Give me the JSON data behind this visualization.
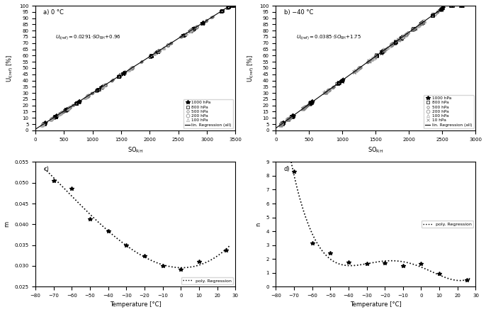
{
  "panel_a": {
    "slope": 0.0291,
    "intercept": 0.96,
    "xlim": [
      0,
      3500
    ],
    "ylim": [
      0,
      100
    ],
    "xticks": [
      0,
      500,
      1000,
      1500,
      2000,
      2500,
      3000,
      3500
    ],
    "rh_setpoints": [
      5,
      10,
      15,
      20,
      30,
      40,
      55,
      70,
      75,
      88,
      91
    ],
    "pressures": [
      1000,
      800,
      500,
      200,
      100
    ]
  },
  "panel_b": {
    "slope": 0.0385,
    "intercept": 1.75,
    "xlim": [
      0,
      3000
    ],
    "ylim": [
      0,
      100
    ],
    "xticks": [
      0,
      500,
      1000,
      1500,
      2000,
      2500,
      3000
    ],
    "rh_setpoints": [
      5,
      10,
      20,
      35,
      55,
      65,
      75,
      85,
      95
    ],
    "pressures": [
      1000,
      800,
      500,
      200,
      100,
      10
    ]
  },
  "panel_c": {
    "xlim": [
      -80,
      30
    ],
    "ylim": [
      0.025,
      0.055
    ],
    "xticks": [
      -80,
      -70,
      -60,
      -50,
      -40,
      -30,
      -20,
      -10,
      0,
      10,
      20,
      30
    ],
    "yticks": [
      0.025,
      0.03,
      0.035,
      0.04,
      0.045,
      0.05,
      0.055
    ],
    "data_x": [
      -70,
      -60,
      -50,
      -40,
      -30,
      -20,
      -10,
      0,
      10,
      25
    ],
    "data_y": [
      0.0505,
      0.0485,
      0.0413,
      0.0383,
      0.035,
      0.0323,
      0.03,
      0.0291,
      0.031,
      0.0338
    ]
  },
  "panel_d": {
    "xlim": [
      -80,
      30
    ],
    "ylim": [
      0,
      9
    ],
    "xticks": [
      -80,
      -70,
      -60,
      -50,
      -40,
      -30,
      -20,
      -10,
      0,
      10,
      20,
      30
    ],
    "yticks": [
      0,
      1,
      2,
      3,
      4,
      5,
      6,
      7,
      8,
      9
    ],
    "data_x": [
      -70,
      -60,
      -50,
      -40,
      -30,
      -20,
      -10,
      0,
      10,
      25
    ],
    "data_y": [
      8.3,
      3.15,
      2.4,
      1.75,
      1.63,
      1.72,
      1.48,
      1.63,
      0.92,
      0.45
    ]
  },
  "scatter_seed": 42
}
